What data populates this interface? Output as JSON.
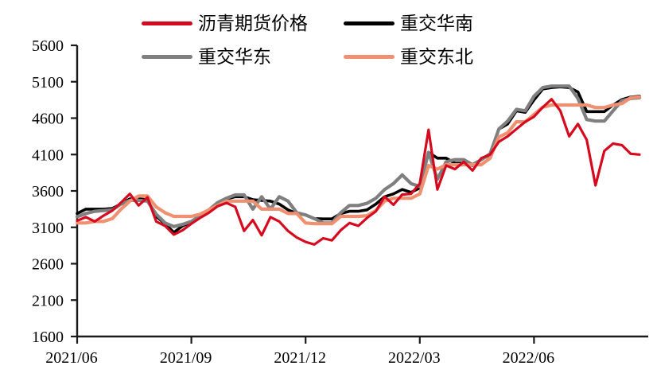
{
  "figure": {
    "background": "#ffffff",
    "axis_color": "#1a1a1a"
  },
  "chart_data": {
    "type": "line",
    "title": "",
    "grid": false,
    "legend_position": "top",
    "x_axis": {
      "tick_labels": [
        "2021/06",
        "2021/09",
        "2021/12",
        "2022/03",
        "2022/06"
      ],
      "tick_week_indices": [
        0,
        13,
        26,
        39,
        52
      ],
      "weeks_total": 65,
      "note": "values sampled weekly from 2021/06 through 2022/08"
    },
    "y_axis": {
      "min": 1600,
      "max": 5600,
      "step": 500,
      "tick_labels": [
        "5600",
        "5100",
        "4600",
        "4100",
        "3600",
        "3100",
        "2600",
        "2100",
        "1600"
      ]
    },
    "series": [
      {
        "name": "沥青期货价格",
        "color": "#D60A1F",
        "values": [
          3190,
          3240,
          3180,
          3260,
          3330,
          3440,
          3560,
          3400,
          3510,
          3180,
          3120,
          3000,
          3060,
          3150,
          3230,
          3300,
          3390,
          3435,
          3380,
          3050,
          3200,
          2990,
          3240,
          3180,
          3050,
          2960,
          2900,
          2865,
          2950,
          2920,
          3060,
          3160,
          3120,
          3230,
          3320,
          3520,
          3410,
          3550,
          3560,
          3700,
          4440,
          3620,
          3950,
          3900,
          4000,
          3880,
          4050,
          4100,
          4275,
          4350,
          4450,
          4550,
          4620,
          4750,
          4860,
          4700,
          4350,
          4520,
          4300,
          3675,
          4150,
          4250,
          4230,
          4110,
          4100
        ]
      },
      {
        "name": "重交华南",
        "color": "#000000",
        "values": [
          3290,
          3350,
          3350,
          3350,
          3360,
          3420,
          3490,
          3490,
          3480,
          3250,
          3150,
          3030,
          3120,
          3170,
          3250,
          3330,
          3420,
          3490,
          3520,
          3520,
          3480,
          3470,
          3460,
          3420,
          3340,
          3290,
          3270,
          3220,
          3215,
          3215,
          3290,
          3320,
          3320,
          3340,
          3420,
          3520,
          3560,
          3620,
          3580,
          3640,
          4130,
          4050,
          4050,
          3980,
          3980,
          3950,
          4030,
          4100,
          4450,
          4520,
          4700,
          4680,
          4850,
          5000,
          5020,
          5030,
          5020,
          4960,
          4690,
          4690,
          4690,
          4780,
          4855,
          4890,
          4900
        ]
      },
      {
        "name": "重交华东",
        "color": "#7F7F7F",
        "values": [
          3245,
          3290,
          3320,
          3330,
          3340,
          3420,
          3470,
          3470,
          3460,
          3280,
          3160,
          3110,
          3140,
          3180,
          3260,
          3340,
          3440,
          3500,
          3545,
          3545,
          3350,
          3520,
          3350,
          3520,
          3460,
          3300,
          3270,
          3220,
          3160,
          3160,
          3300,
          3400,
          3400,
          3430,
          3500,
          3620,
          3700,
          3820,
          3700,
          3660,
          4130,
          3760,
          4000,
          4030,
          4030,
          3960,
          4030,
          4110,
          4450,
          4560,
          4720,
          4700,
          4900,
          5020,
          5040,
          5040,
          5040,
          4870,
          4580,
          4560,
          4560,
          4700,
          4840,
          4870,
          4880
        ]
      },
      {
        "name": "重交东北",
        "color": "#EF9070",
        "values": [
          3160,
          3160,
          3180,
          3180,
          3220,
          3350,
          3460,
          3530,
          3530,
          3380,
          3300,
          3250,
          3250,
          3250,
          3280,
          3340,
          3400,
          3460,
          3460,
          3460,
          3460,
          3350,
          3350,
          3350,
          3290,
          3290,
          3160,
          3150,
          3150,
          3150,
          3250,
          3250,
          3250,
          3260,
          3330,
          3460,
          3500,
          3500,
          3500,
          3560,
          3950,
          3900,
          3960,
          3960,
          3960,
          3960,
          3960,
          4050,
          4340,
          4400,
          4550,
          4550,
          4650,
          4750,
          4780,
          4780,
          4780,
          4780,
          4780,
          4745,
          4745,
          4780,
          4800,
          4880,
          4890
        ]
      }
    ]
  }
}
